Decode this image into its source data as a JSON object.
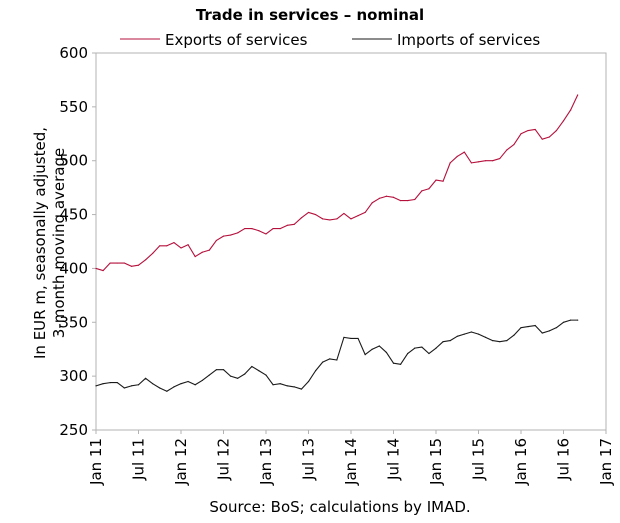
{
  "chart_data": {
    "type": "line",
    "title": "Trade in services – nominal",
    "ylabel": "In EUR m, seasonally adjusted, 3-month moving average",
    "xlabel": "",
    "source": "Source: BoS; calculations by IMAD.",
    "ylim": [
      250,
      600
    ],
    "yticks": [
      250,
      300,
      350,
      400,
      450,
      500,
      550,
      600
    ],
    "xlim": [
      "Jan 11",
      "Jan 17"
    ],
    "x_tick_labels": [
      "Jan 11",
      "Jul 11",
      "Jan 12",
      "Jul 12",
      "Jan 13",
      "Jul 13",
      "Jan 14",
      "Jul 14",
      "Jan 15",
      "Jul 15",
      "Jan 16",
      "Jul 16",
      "Jan 17"
    ],
    "x_start": "Jan 11",
    "grid": false,
    "legend_position": "top",
    "series": [
      {
        "name": "Exports of services",
        "color": "#b5103c",
        "values": [
          400,
          398,
          405,
          405,
          405,
          402,
          403,
          408,
          414,
          421,
          421,
          424,
          419,
          422,
          411,
          415,
          417,
          426,
          430,
          431,
          433,
          437,
          437,
          435,
          432,
          437,
          437,
          440,
          441,
          447,
          452,
          450,
          446,
          445,
          446,
          451,
          446,
          449,
          452,
          461,
          465,
          467,
          466,
          463,
          463,
          464,
          472,
          474,
          482,
          481,
          498,
          504,
          508,
          498,
          499,
          500,
          500,
          502,
          510,
          515,
          525,
          528,
          529,
          520,
          522,
          528,
          537,
          547,
          561
        ]
      },
      {
        "name": "Imports of services",
        "color": "#1a1a1a",
        "values": [
          291,
          293,
          294,
          294,
          289,
          291,
          292,
          298,
          293,
          289,
          286,
          290,
          293,
          295,
          292,
          296,
          301,
          306,
          306,
          300,
          298,
          302,
          309,
          305,
          301,
          292,
          293,
          291,
          290,
          288,
          295,
          305,
          313,
          316,
          315,
          336,
          335,
          335,
          320,
          325,
          328,
          322,
          312,
          311,
          321,
          326,
          327,
          321,
          326,
          332,
          333,
          337,
          339,
          341,
          339,
          336,
          333,
          332,
          333,
          338,
          345,
          346,
          347,
          340,
          342,
          345,
          350,
          352,
          352
        ]
      }
    ]
  }
}
